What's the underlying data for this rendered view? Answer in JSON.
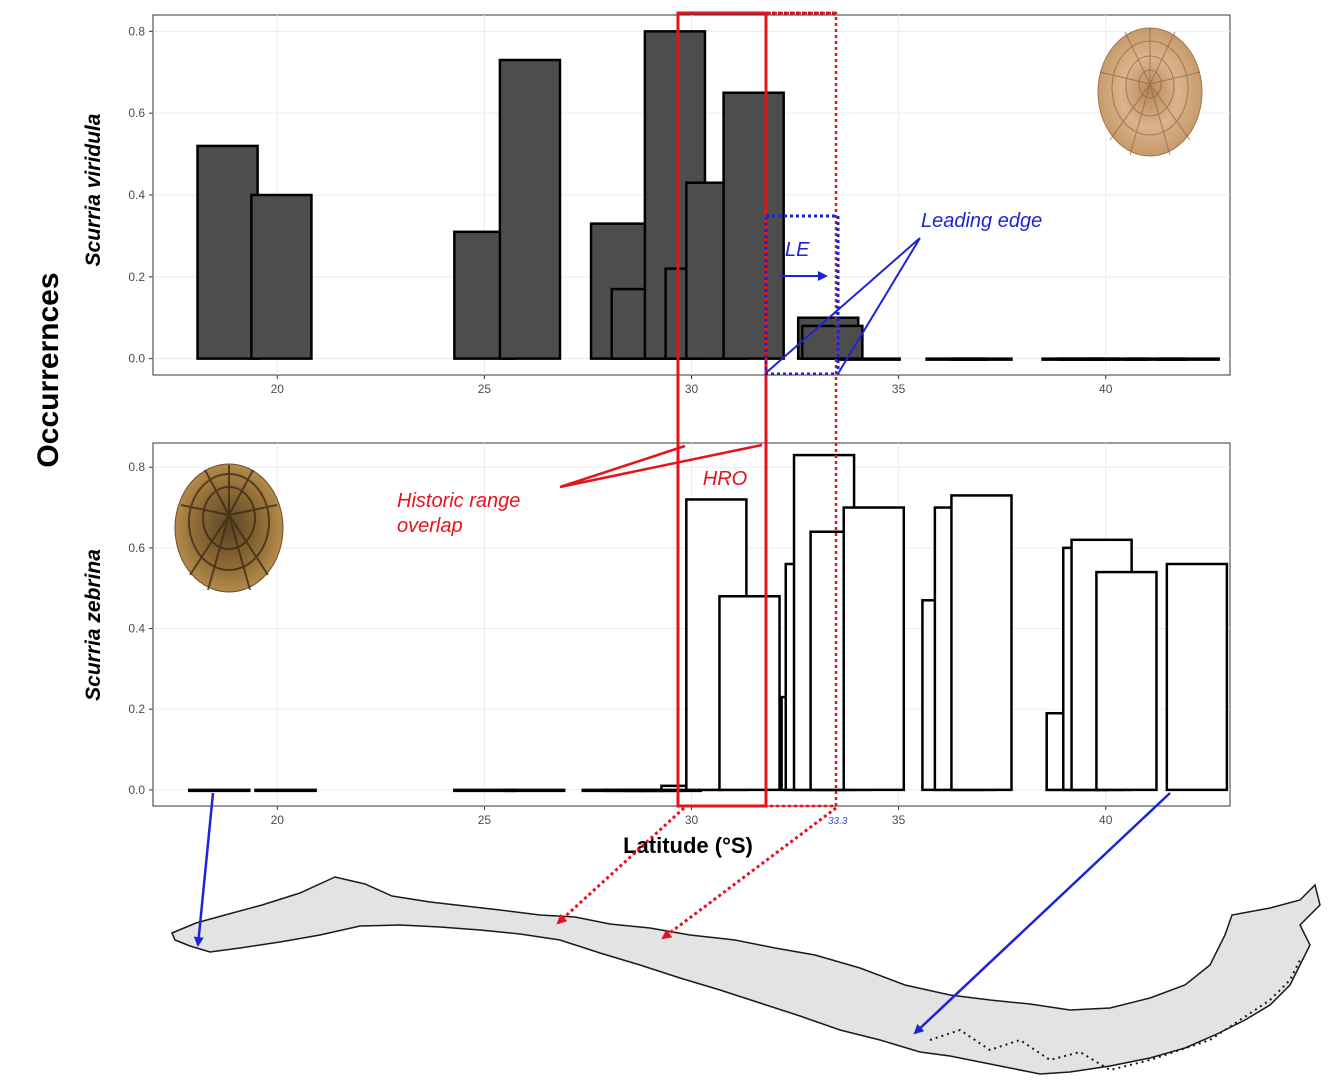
{
  "colors": {
    "bar_fill_top": "#4d4d4d",
    "bar_fill_bottom": "#ffffff",
    "bar_stroke": "#000000",
    "red": "#e5131d",
    "blue": "#1d23d6",
    "map_fill": "#e3e3e3"
  },
  "figure": {
    "y_axis_title": "Occurrernces",
    "x_axis_title": "Latitude (°S)"
  },
  "annotations": {
    "hro": "HRO",
    "historic_line1": "Historic  range",
    "historic_line2": "overlap",
    "le": "LE",
    "leading_edge": "Leading edge",
    "lat_marker": "33.3"
  },
  "icons": {
    "top_shell": "limpet-shell-viridula-icon",
    "bottom_shell": "limpet-shell-zebrina-icon",
    "map": "chile-coast-map-icon"
  },
  "chart_data": [
    {
      "type": "bar",
      "panel": "top",
      "ylabel": "Scurria viridula",
      "xlabel": "Latitude (°S)",
      "xlim": [
        17,
        43
      ],
      "ylim": [
        -0.04,
        0.84
      ],
      "xticks": [
        20,
        25,
        30,
        35,
        40
      ],
      "yticks": [
        0.0,
        0.2,
        0.4,
        0.6,
        0.8
      ],
      "ytick_labels": [
        "0.0",
        "0.2",
        "0.4",
        "0.6",
        "0.8"
      ],
      "grid": true,
      "bars": [
        {
          "x": 18.8,
          "y": 0.52
        },
        {
          "x": 20.1,
          "y": 0.4
        },
        {
          "x": 25.0,
          "y": 0.31
        },
        {
          "x": 26.1,
          "y": 0.73
        },
        {
          "x": 28.3,
          "y": 0.33
        },
        {
          "x": 28.8,
          "y": 0.17
        },
        {
          "x": 29.6,
          "y": 0.8
        },
        {
          "x": 30.1,
          "y": 0.22
        },
        {
          "x": 30.6,
          "y": 0.43
        },
        {
          "x": 31.5,
          "y": 0.65
        },
        {
          "x": 33.3,
          "y": 0.1
        },
        {
          "x": 33.4,
          "y": 0.08
        },
        {
          "x": 34.3,
          "y": 0.0
        },
        {
          "x": 36.4,
          "y": 0.0
        },
        {
          "x": 37.0,
          "y": 0.0
        },
        {
          "x": 39.2,
          "y": 0.0
        },
        {
          "x": 39.6,
          "y": 0.0
        },
        {
          "x": 40.3,
          "y": 0.0
        },
        {
          "x": 41.2,
          "y": 0.0
        },
        {
          "x": 42.0,
          "y": 0.0
        }
      ]
    },
    {
      "type": "bar",
      "panel": "bottom",
      "ylabel": "Scurria zebrina",
      "xlabel": "Latitude (°S)",
      "xlim": [
        17,
        43
      ],
      "ylim": [
        -0.04,
        0.86
      ],
      "xticks": [
        20,
        25,
        30,
        35,
        40
      ],
      "yticks": [
        0.0,
        0.2,
        0.4,
        0.6,
        0.8
      ],
      "ytick_labels": [
        "0.0",
        "0.2",
        "0.4",
        "0.6",
        "0.8"
      ],
      "grid": true,
      "bars": [
        {
          "x": 18.6,
          "y": 0.0
        },
        {
          "x": 20.2,
          "y": 0.0
        },
        {
          "x": 25.0,
          "y": 0.0
        },
        {
          "x": 26.2,
          "y": 0.0
        },
        {
          "x": 28.1,
          "y": 0.0
        },
        {
          "x": 28.6,
          "y": 0.0
        },
        {
          "x": 29.1,
          "y": 0.0
        },
        {
          "x": 29.5,
          "y": 0.0
        },
        {
          "x": 30.0,
          "y": 0.01
        },
        {
          "x": 30.6,
          "y": 0.72
        },
        {
          "x": 31.4,
          "y": 0.48
        },
        {
          "x": 32.9,
          "y": 0.23
        },
        {
          "x": 33.0,
          "y": 0.56
        },
        {
          "x": 33.2,
          "y": 0.83
        },
        {
          "x": 33.6,
          "y": 0.64
        },
        {
          "x": 34.4,
          "y": 0.7
        },
        {
          "x": 36.3,
          "y": 0.47
        },
        {
          "x": 36.6,
          "y": 0.7
        },
        {
          "x": 37.0,
          "y": 0.73
        },
        {
          "x": 39.3,
          "y": 0.17
        },
        {
          "x": 39.3,
          "y": 0.19
        },
        {
          "x": 39.7,
          "y": 0.6
        },
        {
          "x": 39.9,
          "y": 0.62
        },
        {
          "x": 40.5,
          "y": 0.54
        },
        {
          "x": 42.2,
          "y": 0.56
        }
      ]
    }
  ]
}
